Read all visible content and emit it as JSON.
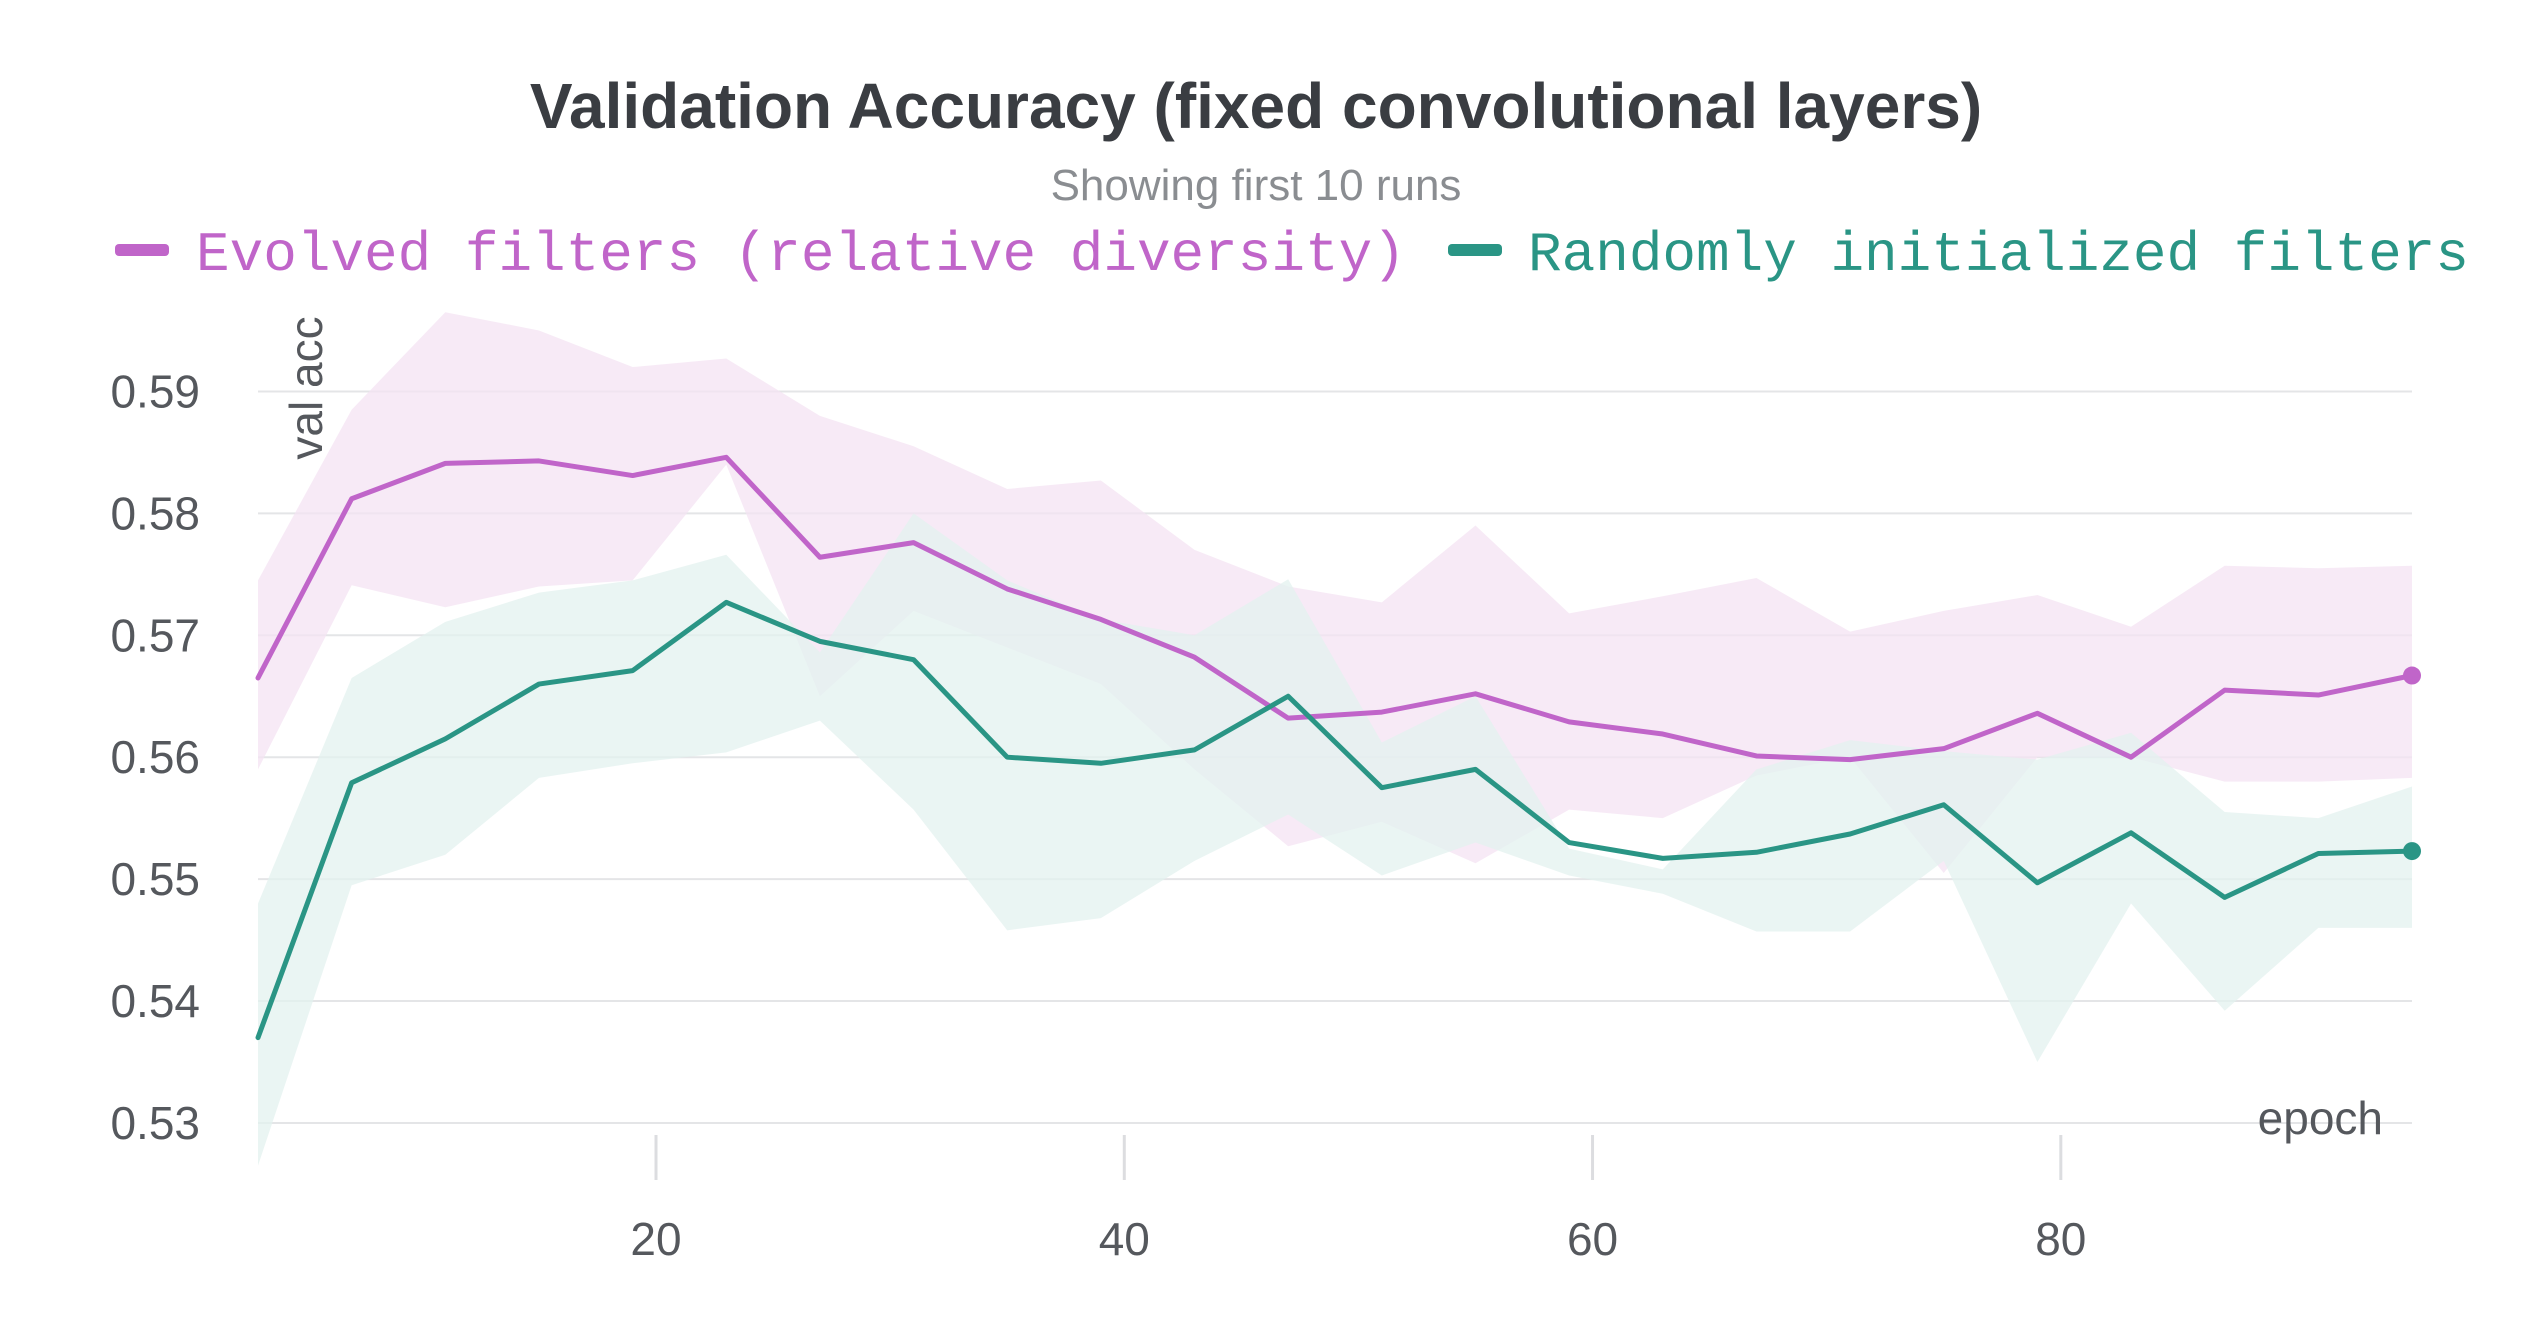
{
  "chart_data": {
    "type": "line",
    "title": "Validation Accuracy (fixed convolutional layers)",
    "subtitle": "Showing first 10 runs",
    "xlabel": "epoch",
    "ylabel": "val acc",
    "xlim": [
      3,
      95
    ],
    "ylim": [
      0.5245,
      0.5975
    ],
    "x_ticks": [
      20,
      40,
      60,
      80
    ],
    "y_ticks": [
      0.53,
      0.54,
      0.55,
      0.56,
      0.57,
      0.58,
      0.59
    ],
    "grid": "horizontal",
    "legend_position": "top",
    "x": [
      3,
      7,
      11,
      15,
      19,
      23,
      27,
      31,
      35,
      39,
      43,
      47,
      51,
      55,
      59,
      63,
      67,
      71,
      75,
      79,
      83,
      87,
      91,
      95
    ],
    "series": [
      {
        "name": "Evolved filters (relative diversity)",
        "color": "#c065c9",
        "band_color": "#f4e3f3",
        "values": [
          0.5665,
          0.5812,
          0.5841,
          0.5843,
          0.5831,
          0.5846,
          0.5764,
          0.5776,
          0.5738,
          0.5713,
          0.5682,
          0.5632,
          0.5637,
          0.5652,
          0.5629,
          0.5619,
          0.5601,
          0.5598,
          0.5607,
          0.5636,
          0.56,
          0.5655,
          0.5651,
          0.5667
        ],
        "upper": [
          0.5745,
          0.5885,
          0.5965,
          0.595,
          0.592,
          0.5927,
          0.588,
          0.5855,
          0.582,
          0.5827,
          0.577,
          0.574,
          0.5727,
          0.579,
          0.5718,
          0.5732,
          0.5747,
          0.5703,
          0.572,
          0.5733,
          0.5707,
          0.5757,
          0.5755,
          0.5757
        ],
        "lower": [
          0.559,
          0.5741,
          0.5723,
          0.574,
          0.5745,
          0.584,
          0.565,
          0.572,
          0.569,
          0.566,
          0.559,
          0.5527,
          0.5547,
          0.5513,
          0.5557,
          0.555,
          0.5585,
          0.56,
          0.5505,
          0.56,
          0.56,
          0.558,
          0.558,
          0.5583
        ]
      },
      {
        "name": "Randomly initialized filters",
        "color": "#2a9585",
        "band_color": "#e3f1ef",
        "values": [
          0.537,
          0.5579,
          0.5615,
          0.566,
          0.5671,
          0.5727,
          0.5695,
          0.568,
          0.56,
          0.5595,
          0.5606,
          0.565,
          0.5575,
          0.559,
          0.553,
          0.5517,
          0.5522,
          0.5537,
          0.5561,
          0.5497,
          0.5538,
          0.5485,
          0.5521,
          0.5523
        ],
        "upper": [
          0.548,
          0.5665,
          0.5711,
          0.5735,
          0.5745,
          0.5766,
          0.5686,
          0.58,
          0.5745,
          0.5713,
          0.57,
          0.5746,
          0.5612,
          0.565,
          0.5525,
          0.5508,
          0.559,
          0.5614,
          0.5605,
          0.5598,
          0.562,
          0.5555,
          0.555,
          0.5576
        ],
        "lower": [
          0.5265,
          0.5495,
          0.552,
          0.5583,
          0.5595,
          0.5604,
          0.563,
          0.5557,
          0.5458,
          0.5468,
          0.5515,
          0.5553,
          0.5503,
          0.553,
          0.5503,
          0.5488,
          0.5457,
          0.5457,
          0.5515,
          0.535,
          0.548,
          0.5392,
          0.546,
          0.546
        ]
      }
    ]
  }
}
